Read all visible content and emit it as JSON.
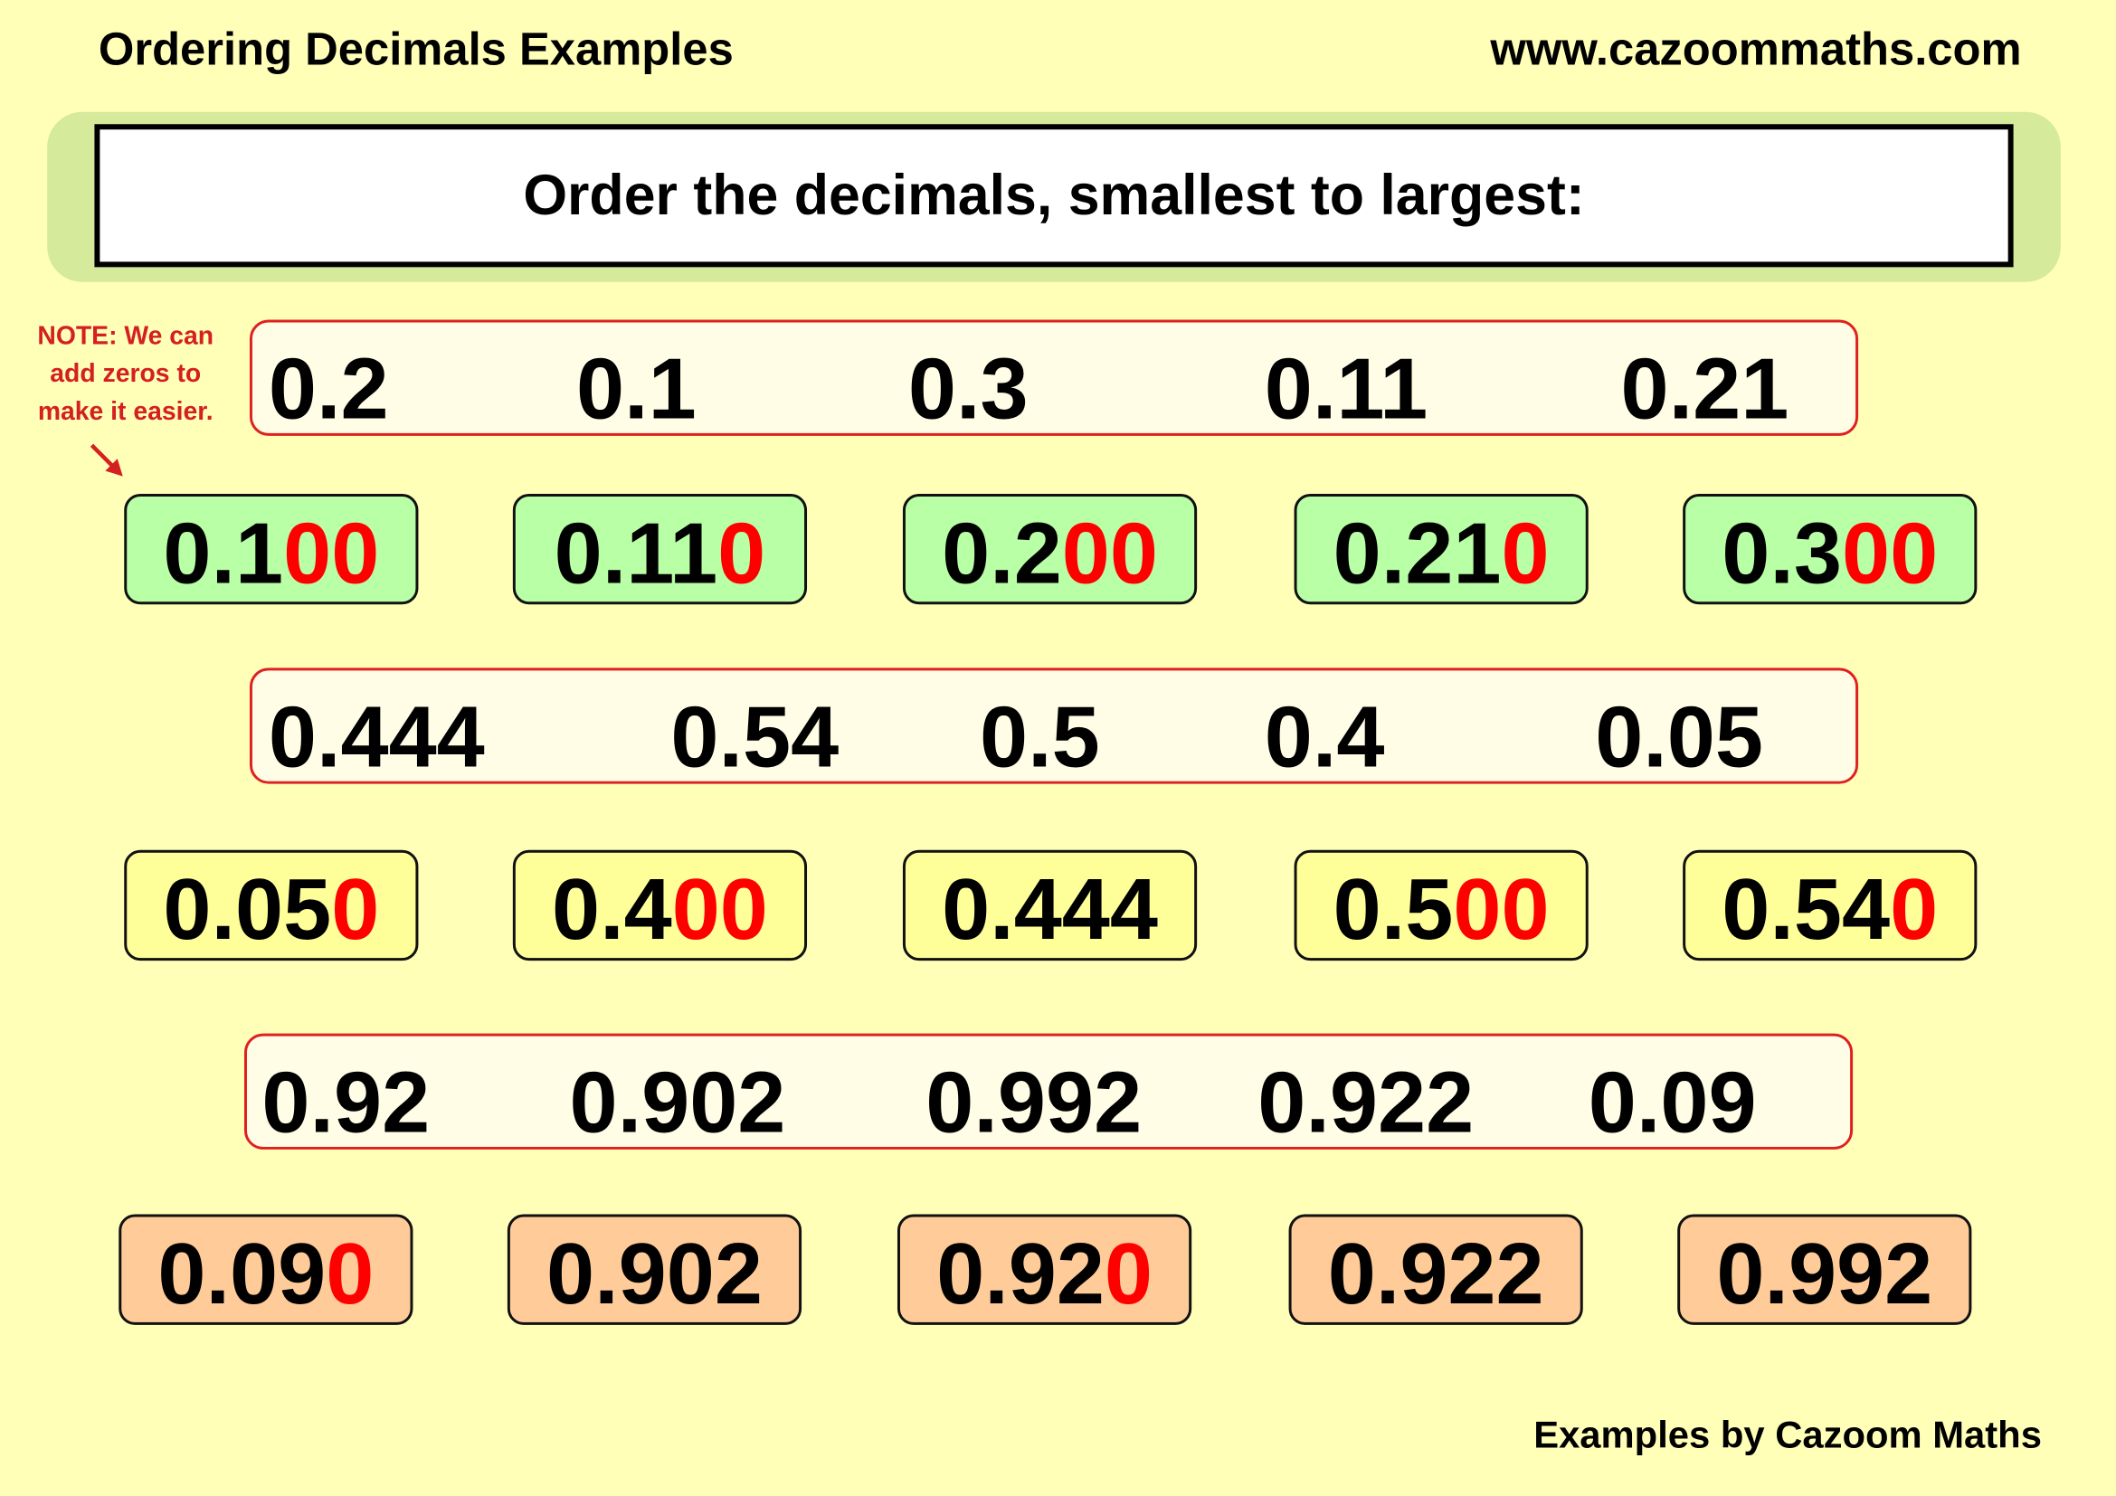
{
  "header": {
    "title": "Ordering Decimals Examples",
    "url": "www.cazoommaths.com"
  },
  "instruction": "Order the decimals, smallest to largest:",
  "note": {
    "lines": [
      "NOTE: We can",
      "add zeros to",
      "make it easier."
    ],
    "icon": "arrow-down-right-icon"
  },
  "colors": {
    "background": "#ffffb8",
    "band": "#d5ea9a",
    "question_border": "#e02020",
    "added_zeros": "#ff0000",
    "row1_answers": "#b8ffa6",
    "row2_answers": "#ffff99",
    "row3_answers": "#ffcc99"
  },
  "examples": [
    {
      "question": [
        "0.2",
        "0.1",
        "0.3",
        "0.11",
        "0.21"
      ],
      "answers": [
        {
          "digits": "0.1",
          "zeros": "00"
        },
        {
          "digits": "0.11",
          "zeros": "0"
        },
        {
          "digits": "0.2",
          "zeros": "00"
        },
        {
          "digits": "0.21",
          "zeros": "0"
        },
        {
          "digits": "0.3",
          "zeros": "00"
        }
      ]
    },
    {
      "question": [
        "0.444",
        "0.54",
        "0.5",
        "0.4",
        "0.05"
      ],
      "answers": [
        {
          "digits": "0.05",
          "zeros": "0"
        },
        {
          "digits": "0.4",
          "zeros": "00"
        },
        {
          "digits": "0.444",
          "zeros": ""
        },
        {
          "digits": "0.5",
          "zeros": "00"
        },
        {
          "digits": "0.54",
          "zeros": "0"
        }
      ]
    },
    {
      "question": [
        "0.92",
        "0.902",
        "0.992",
        "0.922",
        "0.09"
      ],
      "answers": [
        {
          "digits": "0.09",
          "zeros": "0"
        },
        {
          "digits": "0.902",
          "zeros": ""
        },
        {
          "digits": "0.92",
          "zeros": "0"
        },
        {
          "digits": "0.922",
          "zeros": ""
        },
        {
          "digits": "0.992",
          "zeros": ""
        }
      ]
    }
  ],
  "footer": "Examples by Cazoom Maths"
}
